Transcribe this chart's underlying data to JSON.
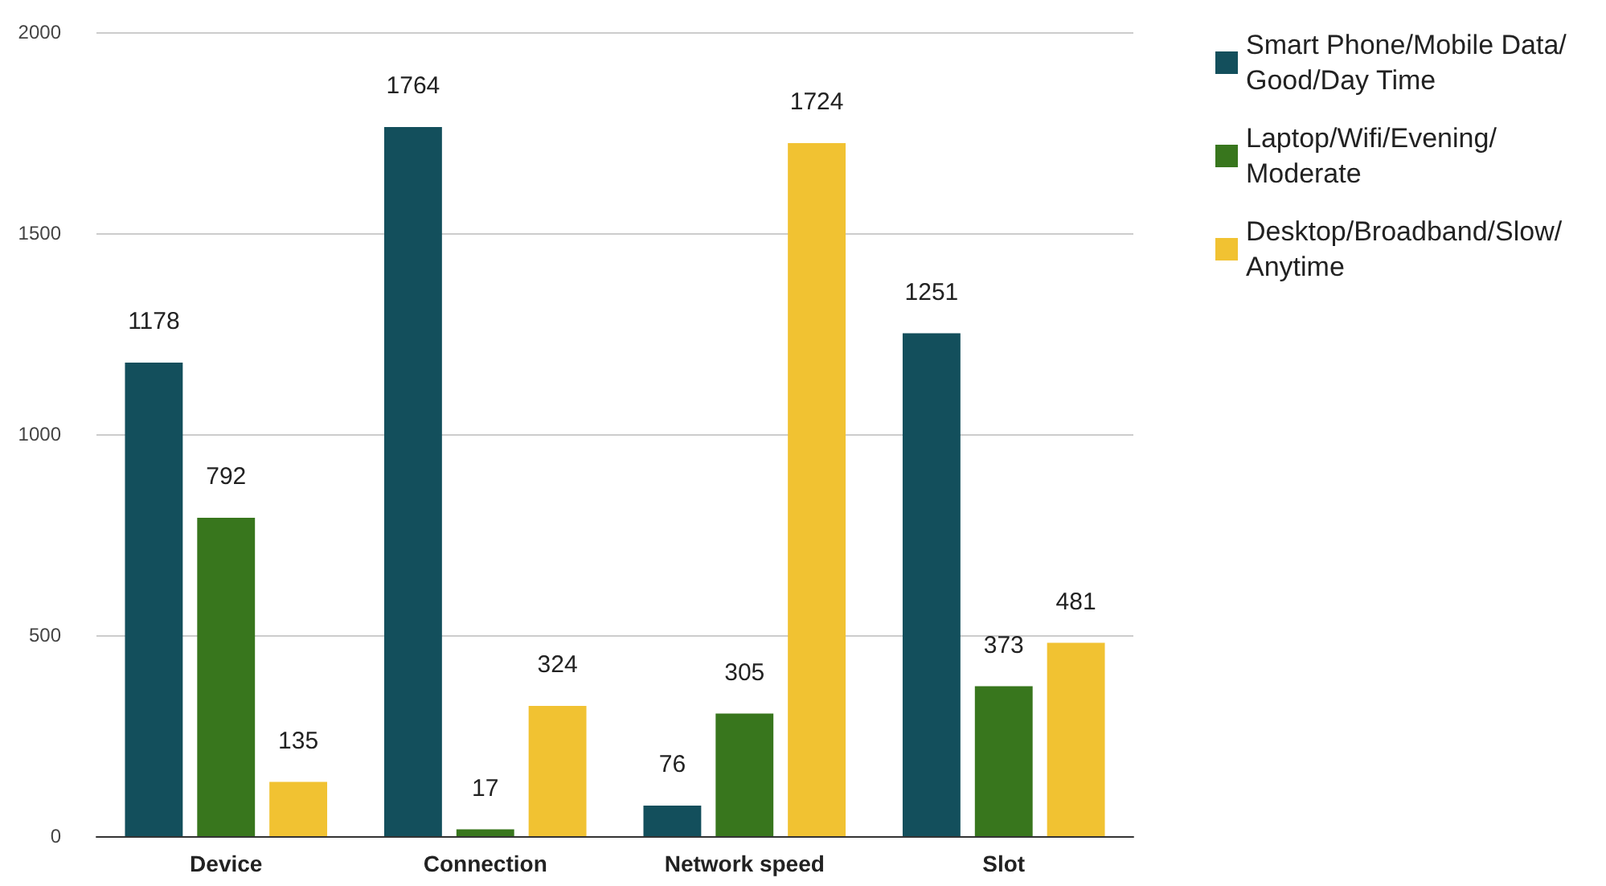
{
  "chart_data": {
    "type": "bar",
    "categories": [
      "Device",
      "Connection",
      "Network speed",
      "Slot"
    ],
    "series": [
      {
        "name": "Smart Phone/Mobile Data/Good/Day Time",
        "color": "#134f5c",
        "values": [
          1178,
          1764,
          76,
          1251
        ]
      },
      {
        "name": "Laptop/Wifi/Evening/Moderate",
        "color": "#38761d",
        "values": [
          792,
          17,
          305,
          373
        ]
      },
      {
        "name": "Desktop/Broadband/Slow/Anytime",
        "color": "#f1c232",
        "values": [
          135,
          324,
          1724,
          481
        ]
      }
    ],
    "ylim": [
      0,
      2000
    ],
    "yticks": [
      0,
      500,
      1000,
      1500,
      2000
    ],
    "grid": "y",
    "legend": "top right",
    "data_labels": true
  }
}
